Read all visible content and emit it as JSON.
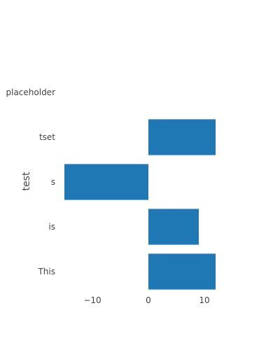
{
  "chart_data": {
    "type": "bar",
    "orientation": "horizontal",
    "categories": [
      "This",
      "is",
      "s",
      "tset",
      "placeholder"
    ],
    "series": [
      {
        "values": [
          12,
          9,
          -15,
          12,
          null
        ],
        "color": "#1f77b4"
      }
    ],
    "ylabel": "test",
    "xlabel": "",
    "xlim": [
      -15,
      12
    ],
    "xticks": [
      {
        "value": -10,
        "label": "−10"
      },
      {
        "value": 0,
        "label": "0"
      },
      {
        "value": 10,
        "label": "10"
      }
    ],
    "grid": false,
    "legend": "none"
  }
}
